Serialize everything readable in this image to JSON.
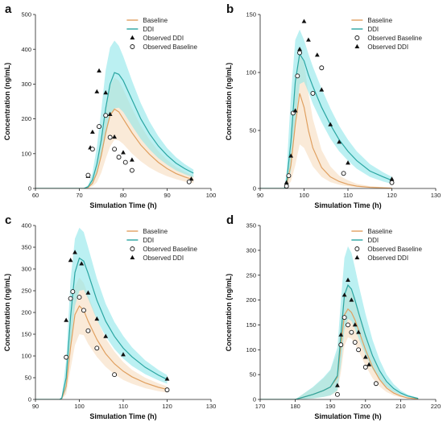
{
  "colors": {
    "baseline_line": "#e0a060",
    "baseline_band": "#f5d9b8",
    "ddi_line": "#2aa6a2",
    "ddi_band": "#8ee6ea",
    "marker": "#111111"
  },
  "chart_data": [
    {
      "panel": "a",
      "type": "line",
      "xlabel": "Simulation Time (h)",
      "ylabel": "Concentration (ng/mL)",
      "xlim": [
        60,
        100
      ],
      "ylim": [
        0,
        500
      ],
      "xticks": [
        60,
        70,
        80,
        90,
        100
      ],
      "yticks": [
        0,
        100,
        200,
        300,
        400,
        500
      ],
      "legend": [
        "Baseline",
        "DDI",
        "Observed DDI",
        "Observed Baseline"
      ],
      "legend_markers": [
        "line-baseline",
        "line-ddi",
        "triangle",
        "circle"
      ],
      "legend_position": "top-right",
      "series": [
        {
          "name": "Baseline",
          "kind": "line",
          "x": [
            60,
            71,
            72,
            73,
            74,
            75,
            76,
            77,
            78,
            79,
            80,
            82,
            84,
            86,
            88,
            90,
            92,
            94,
            96
          ],
          "y": [
            0,
            0,
            3,
            15,
            45,
            95,
            160,
            210,
            228,
            220,
            200,
            160,
            125,
            98,
            75,
            57,
            43,
            33,
            25
          ],
          "upper": [
            0,
            0,
            6,
            30,
            80,
            150,
            230,
            295,
            318,
            310,
            285,
            230,
            180,
            140,
            107,
            82,
            62,
            48,
            36
          ],
          "lower": [
            0,
            0,
            1,
            6,
            18,
            45,
            85,
            120,
            140,
            138,
            128,
            100,
            78,
            60,
            46,
            35,
            27,
            20,
            15
          ]
        },
        {
          "name": "DDI",
          "kind": "line",
          "x": [
            60,
            71,
            72,
            73,
            74,
            75,
            76,
            77,
            78,
            79,
            80,
            82,
            84,
            86,
            88,
            90,
            92,
            94,
            96
          ],
          "y": [
            0,
            0,
            5,
            25,
            70,
            140,
            230,
            300,
            333,
            328,
            310,
            255,
            200,
            157,
            122,
            95,
            73,
            57,
            44
          ],
          "upper": [
            0,
            0,
            9,
            45,
            120,
            225,
            340,
            405,
            425,
            410,
            380,
            310,
            245,
            192,
            150,
            116,
            90,
            70,
            54
          ],
          "lower": [
            0,
            0,
            2,
            12,
            40,
            90,
            150,
            205,
            230,
            232,
            220,
            180,
            142,
            112,
            87,
            68,
            52,
            41,
            32
          ]
        },
        {
          "name": "Observed DDI",
          "kind": "scatter",
          "marker": "triangle",
          "x": [
            72,
            72.5,
            73,
            74,
            74.5,
            76,
            77,
            78,
            80,
            82,
            95.5
          ],
          "y": [
            35,
            117,
            162,
            278,
            338,
            275,
            213,
            148,
            103,
            82,
            27
          ]
        },
        {
          "name": "Observed Baseline",
          "kind": "scatter",
          "marker": "circle",
          "x": [
            72,
            73,
            74.5,
            76,
            77,
            78,
            79,
            80.5,
            82,
            95
          ],
          "y": [
            38,
            113,
            178,
            210,
            147,
            113,
            90,
            75,
            52,
            19
          ]
        }
      ]
    },
    {
      "panel": "b",
      "type": "line",
      "xlabel": "Simulation Time (h)",
      "ylabel": "Concentration (ng/mL)",
      "xlim": [
        90,
        130
      ],
      "ylim": [
        0,
        150
      ],
      "xticks": [
        90,
        100,
        110,
        120,
        130
      ],
      "yticks": [
        0,
        50,
        100,
        150
      ],
      "legend": [
        "Baseline",
        "DDI",
        "Observed Baseline",
        "Observed DDI"
      ],
      "legend_markers": [
        "line-baseline",
        "line-ddi",
        "circle",
        "triangle"
      ],
      "legend_position": "top-right",
      "series": [
        {
          "name": "Baseline",
          "kind": "line",
          "x": [
            90,
            95.5,
            96,
            97,
            98,
            99,
            100,
            101,
            102,
            104,
            106,
            108,
            110,
            112,
            115,
            118,
            120
          ],
          "y": [
            0,
            0,
            3,
            20,
            55,
            82,
            70,
            50,
            35,
            18,
            10,
            6,
            3.5,
            2,
            1,
            0.5,
            0.3
          ],
          "upper": [
            0,
            0,
            8,
            45,
            95,
            118,
            108,
            82,
            60,
            33,
            19,
            11,
            7,
            4,
            2,
            1,
            0.6
          ],
          "lower": [
            0,
            0,
            1,
            6,
            20,
            38,
            35,
            27,
            19,
            10,
            5.5,
            3.2,
            1.8,
            1,
            0.5,
            0.2,
            0.1
          ]
        },
        {
          "name": "DDI",
          "kind": "line",
          "x": [
            90,
            95.5,
            96,
            97,
            98,
            99,
            100,
            101,
            102,
            104,
            106,
            108,
            110,
            112,
            115,
            118,
            120
          ],
          "y": [
            0,
            0,
            5,
            40,
            92,
            116,
            110,
            98,
            88,
            70,
            55,
            42,
            32,
            24,
            15,
            10,
            7
          ],
          "upper": [
            0,
            0,
            14,
            80,
            128,
            137,
            128,
            116,
            105,
            86,
            69,
            54,
            42,
            32,
            21,
            14,
            10
          ],
          "lower": [
            0,
            0,
            1.5,
            15,
            55,
            90,
            92,
            83,
            73,
            57,
            43,
            32,
            24,
            17,
            10,
            6,
            4
          ]
        },
        {
          "name": "Observed Baseline",
          "kind": "scatter",
          "marker": "circle",
          "x": [
            96,
            96.5,
            97.5,
            98.5,
            99,
            102,
            104,
            109,
            120
          ],
          "y": [
            2,
            11,
            65,
            97,
            117,
            82,
            104,
            13,
            5
          ]
        },
        {
          "name": "Observed DDI",
          "kind": "scatter",
          "marker": "triangle",
          "x": [
            96,
            97,
            98,
            99,
            100,
            101,
            103,
            104,
            106,
            108,
            110,
            120
          ],
          "y": [
            5,
            28,
            67,
            120,
            144,
            128,
            115,
            85,
            55,
            40,
            22,
            8
          ]
        }
      ]
    },
    {
      "panel": "c",
      "type": "line",
      "xlabel": "Simulation Time (h)",
      "ylabel": "Concentration (ng/mL)",
      "xlim": [
        90,
        130
      ],
      "ylim": [
        0,
        400
      ],
      "xticks": [
        90,
        100,
        110,
        120,
        130
      ],
      "yticks": [
        0,
        50,
        100,
        150,
        200,
        250,
        300,
        350,
        400
      ],
      "legend": [
        "Baseline",
        "DDI",
        "Observed Baseline",
        "Observed DDI"
      ],
      "legend_markers": [
        "line-baseline",
        "line-ddi",
        "circle",
        "triangle"
      ],
      "legend_position": "top-right",
      "series": [
        {
          "name": "Baseline",
          "kind": "line",
          "x": [
            90,
            95.5,
            96,
            97,
            98,
            99,
            100,
            101,
            102,
            104,
            106,
            108,
            110,
            112,
            115,
            118,
            120
          ],
          "y": [
            0,
            0,
            2,
            30,
            120,
            195,
            215,
            205,
            180,
            138,
            105,
            82,
            65,
            52,
            38,
            28,
            23
          ],
          "upper": [
            0,
            0,
            5,
            55,
            180,
            260,
            280,
            268,
            240,
            185,
            140,
            110,
            86,
            68,
            50,
            37,
            30
          ],
          "lower": [
            0,
            0,
            1,
            12,
            70,
            125,
            150,
            148,
            128,
            98,
            75,
            58,
            45,
            36,
            26,
            19,
            16
          ]
        },
        {
          "name": "DDI",
          "kind": "line",
          "x": [
            90,
            95.5,
            96,
            97,
            98,
            99,
            100,
            101,
            102,
            104,
            106,
            108,
            110,
            112,
            115,
            118,
            120
          ],
          "y": [
            0,
            0,
            3,
            50,
            190,
            292,
            325,
            318,
            290,
            228,
            180,
            145,
            118,
            98,
            74,
            56,
            46
          ],
          "upper": [
            0,
            0,
            7,
            90,
            275,
            370,
            395,
            385,
            350,
            278,
            220,
            178,
            146,
            120,
            90,
            68,
            56
          ],
          "lower": [
            0,
            0,
            1,
            22,
            120,
            215,
            250,
            252,
            232,
            183,
            145,
            116,
            94,
            77,
            58,
            44,
            36
          ]
        },
        {
          "name": "Observed Baseline",
          "kind": "scatter",
          "marker": "circle",
          "x": [
            97,
            98,
            98.5,
            100,
            101,
            102,
            104,
            108,
            120
          ],
          "y": [
            97,
            232,
            248,
            235,
            205,
            158,
            118,
            57,
            22
          ]
        },
        {
          "name": "Observed DDI",
          "kind": "scatter",
          "marker": "triangle",
          "x": [
            97,
            98,
            99,
            100.5,
            102,
            104,
            106,
            110,
            120
          ],
          "y": [
            182,
            320,
            338,
            312,
            245,
            185,
            145,
            103,
            47
          ]
        }
      ]
    },
    {
      "panel": "d",
      "type": "line",
      "xlabel": "Simulation Time (h)",
      "ylabel": "Concentration (ng/mL)",
      "xlim": [
        170,
        220
      ],
      "ylim": [
        0,
        350
      ],
      "xticks": [
        170,
        180,
        190,
        200,
        210,
        220
      ],
      "yticks": [
        0,
        50,
        100,
        150,
        200,
        250,
        300,
        350
      ],
      "legend": [
        "Baseline",
        "DDI",
        "Observed Baseline",
        "Observed DDI"
      ],
      "legend_markers": [
        "line-baseline",
        "line-ddi",
        "circle",
        "triangle"
      ],
      "legend_position": "top-right",
      "series": [
        {
          "name": "Baseline",
          "kind": "line",
          "x": [
            170,
            180,
            182,
            185,
            188,
            190,
            192,
            193,
            194,
            195,
            196,
            197,
            198,
            200,
            202,
            204,
            206,
            208,
            210,
            212,
            215
          ],
          "y": [
            0,
            0,
            4,
            10,
            18,
            25,
            45,
            110,
            170,
            182,
            175,
            160,
            140,
            100,
            65,
            40,
            23,
            13,
            7,
            3,
            1
          ],
          "upper": [
            0,
            0,
            10,
            24,
            42,
            58,
            95,
            165,
            220,
            232,
            222,
            205,
            182,
            135,
            90,
            56,
            33,
            19,
            10,
            5,
            2
          ],
          "lower": [
            0,
            0,
            0.5,
            2,
            5,
            8,
            16,
            55,
            108,
            125,
            122,
            112,
            98,
            68,
            43,
            26,
            15,
            8,
            4,
            2,
            0.5
          ]
        },
        {
          "name": "DDI",
          "kind": "line",
          "x": [
            170,
            180,
            182,
            185,
            188,
            190,
            192,
            193,
            194,
            195,
            196,
            197,
            198,
            200,
            202,
            204,
            206,
            208,
            210,
            212,
            215
          ],
          "y": [
            0,
            0,
            4,
            10,
            18,
            25,
            48,
            130,
            210,
            230,
            222,
            200,
            175,
            128,
            88,
            58,
            36,
            22,
            13,
            7,
            2
          ],
          "upper": [
            0,
            0,
            10,
            25,
            44,
            60,
            105,
            200,
            285,
            308,
            295,
            265,
            232,
            172,
            120,
            80,
            50,
            31,
            18,
            10,
            3
          ],
          "lower": [
            0,
            0,
            0.5,
            2,
            5,
            8,
            18,
            70,
            140,
            162,
            158,
            142,
            124,
            90,
            61,
            40,
            25,
            15,
            9,
            5,
            1
          ]
        },
        {
          "name": "Observed Baseline",
          "kind": "scatter",
          "marker": "circle",
          "x": [
            192,
            193,
            194,
            195,
            196,
            197,
            198,
            200,
            203
          ],
          "y": [
            10,
            110,
            165,
            150,
            135,
            115,
            100,
            65,
            32
          ]
        },
        {
          "name": "Observed DDI",
          "kind": "scatter",
          "marker": "triangle",
          "x": [
            192,
            193,
            194,
            195,
            196,
            197,
            198,
            200,
            201
          ],
          "y": [
            28,
            130,
            210,
            240,
            200,
            150,
            135,
            85,
            70
          ]
        }
      ]
    }
  ]
}
